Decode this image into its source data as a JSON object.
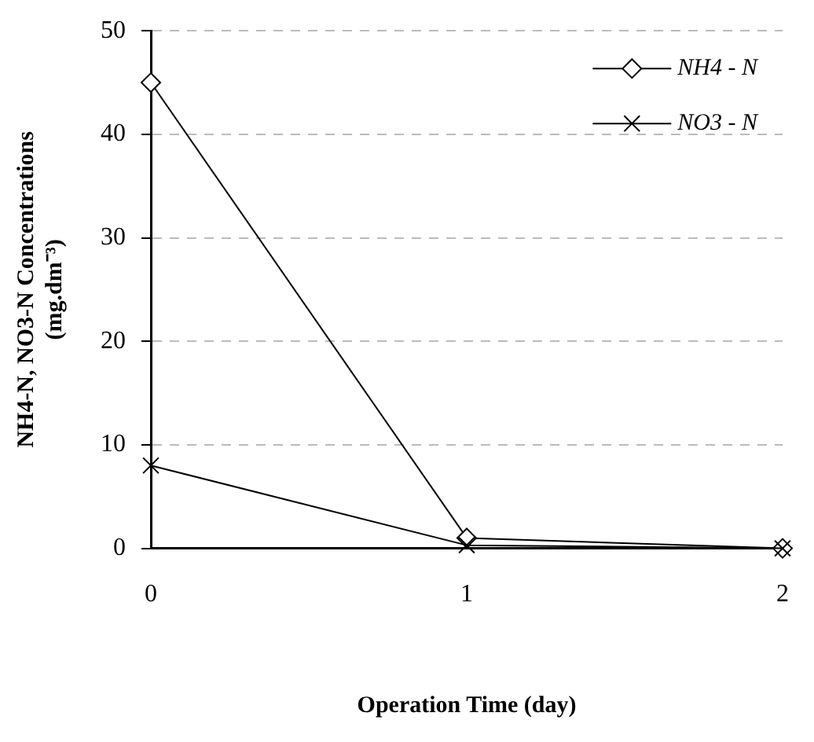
{
  "chart_data": {
    "type": "line",
    "xlabel": "Operation Time (day)",
    "ylabel": "NH4-N, NO3-N Concentrations\n(mg.dm⁻³)",
    "x": [
      0,
      1,
      2
    ],
    "series": [
      {
        "name": "NH4 - N",
        "color": "#000000",
        "values": [
          45,
          1,
          0
        ],
        "marker": "diamond"
      },
      {
        "name": "NO3 - N",
        "color": "#000000",
        "values": [
          8,
          0.3,
          0
        ],
        "marker": "cross"
      }
    ],
    "xlim": [
      0,
      2
    ],
    "xticks": [
      0,
      1,
      2
    ],
    "ylim": [
      0,
      50
    ],
    "yticks": [
      0,
      10,
      20,
      30,
      40,
      50
    ],
    "grid": "y",
    "legend": "top right",
    "line_style": "solid"
  }
}
